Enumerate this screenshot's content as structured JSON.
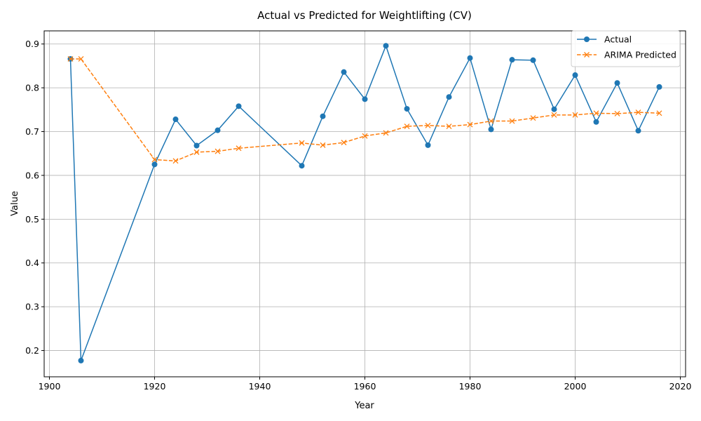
{
  "chart_data": {
    "type": "line",
    "title": "Actual vs Predicted for Weightlifting (CV)",
    "xlabel": "Year",
    "ylabel": "Value",
    "xlim": [
      1899,
      2021
    ],
    "ylim": [
      0.14,
      0.93
    ],
    "xticks": [
      1900,
      1920,
      1940,
      1960,
      1980,
      2000,
      2020
    ],
    "yticks": [
      0.2,
      0.3,
      0.4,
      0.5,
      0.6,
      0.7,
      0.8,
      0.9
    ],
    "grid": true,
    "legend": "top-right",
    "x": [
      1904,
      1906,
      1920,
      1924,
      1928,
      1932,
      1936,
      1948,
      1952,
      1956,
      1960,
      1964,
      1968,
      1972,
      1976,
      1980,
      1984,
      1988,
      1992,
      1996,
      2000,
      2004,
      2008,
      2012,
      2016
    ],
    "series": [
      {
        "name": "Actual",
        "color": "#1f77b4",
        "style": "solid",
        "marker": "circle",
        "values": [
          0.866,
          0.177,
          0.625,
          0.728,
          0.668,
          0.703,
          0.758,
          0.622,
          0.735,
          0.836,
          0.774,
          0.896,
          0.752,
          0.669,
          0.779,
          0.868,
          0.705,
          0.864,
          0.863,
          0.751,
          0.829,
          0.722,
          0.811,
          0.702,
          0.802
        ]
      },
      {
        "name": "ARIMA Predicted",
        "color": "#ff7f0e",
        "style": "dashed",
        "marker": "x",
        "values": [
          0.866,
          0.866,
          0.636,
          0.633,
          0.653,
          0.655,
          0.662,
          0.674,
          0.669,
          0.675,
          0.69,
          0.697,
          0.712,
          0.714,
          0.712,
          0.716,
          0.724,
          0.724,
          0.731,
          0.738,
          0.738,
          0.742,
          0.741,
          0.744,
          0.742
        ]
      }
    ]
  }
}
